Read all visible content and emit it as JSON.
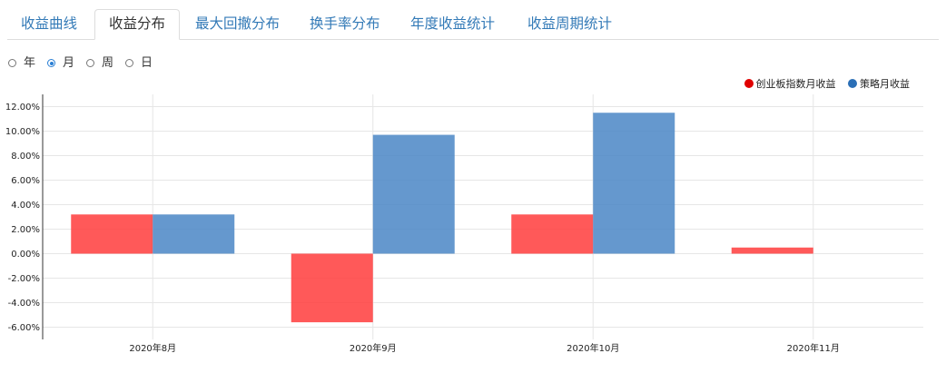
{
  "tabs": [
    {
      "label": "收益曲线"
    },
    {
      "label": "收益分布"
    },
    {
      "label": "最大回撤分布"
    },
    {
      "label": "换手率分布"
    },
    {
      "label": "年度收益统计"
    },
    {
      "label": "收益周期统计"
    }
  ],
  "active_tab": 1,
  "period_options": [
    {
      "label": "年",
      "checked": false
    },
    {
      "label": "月",
      "checked": true
    },
    {
      "label": "周",
      "checked": false
    },
    {
      "label": "日",
      "checked": false
    }
  ],
  "chart_data": {
    "type": "bar",
    "categories": [
      "2020年8月",
      "2020年9月",
      "2020年10月",
      "2020年11月"
    ],
    "series": [
      {
        "name": "创业板指数月收益",
        "color": "#ff3c3c",
        "values": [
          3.2,
          -5.6,
          3.2,
          0.5
        ]
      },
      {
        "name": "策略月收益",
        "color": "#4a86c5",
        "values": [
          3.2,
          9.7,
          11.5,
          0
        ]
      }
    ],
    "ylim": [
      -7,
      13
    ],
    "yticks": [
      12,
      10,
      8,
      6,
      4,
      2,
      0,
      -2,
      -4,
      -6
    ],
    "ytick_labels": [
      "12.00%",
      "10.00%",
      "8.00%",
      "6.00%",
      "4.00%",
      "2.00%",
      "0.00%",
      "-2.00%",
      "-4.00%",
      "-6.00%"
    ],
    "legend_position": "top-right",
    "grid": true,
    "legend_colors": [
      "#e00000",
      "#2b6fb6"
    ]
  }
}
